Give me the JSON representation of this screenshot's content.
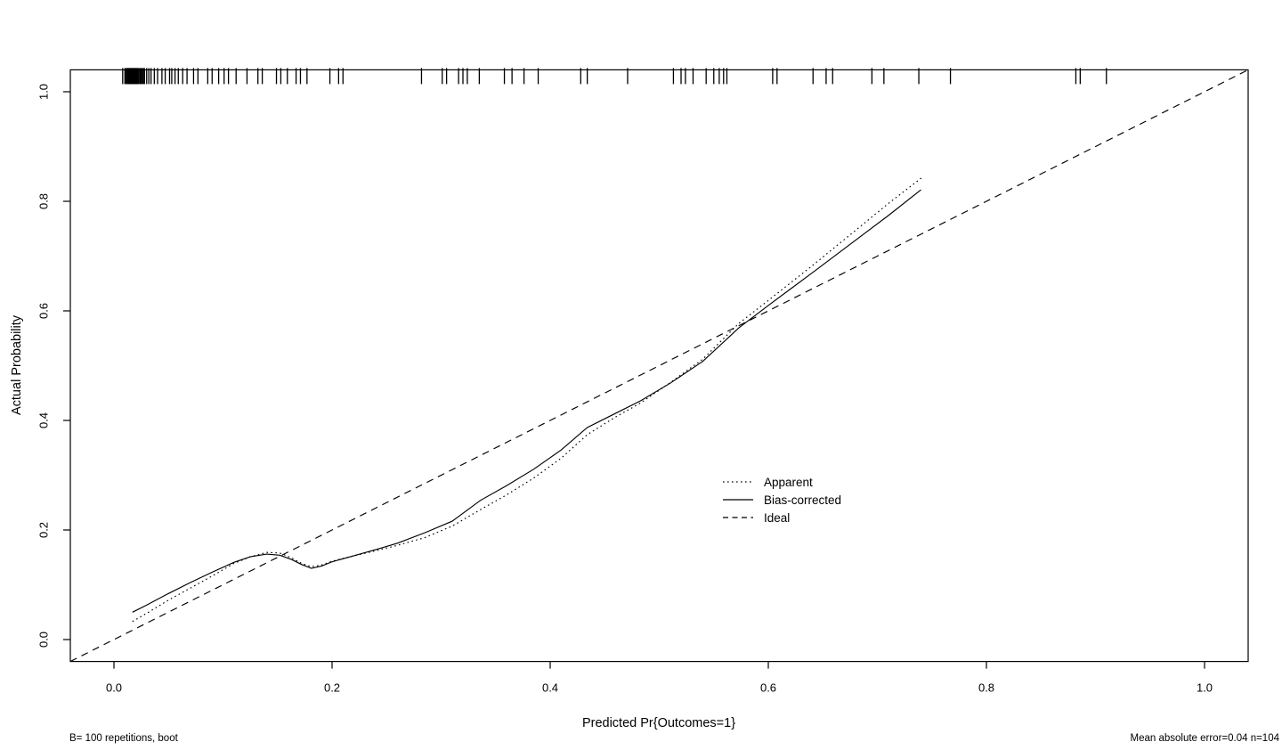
{
  "colors": {
    "foreground": "#000000",
    "background": "#ffffff"
  },
  "chart_data": {
    "type": "line",
    "title": "",
    "xlabel": "Predicted Pr{Outcomes=1}",
    "ylabel": "Actual Probability",
    "xlim": [
      -0.04,
      1.04
    ],
    "ylim": [
      -0.04,
      1.04
    ],
    "grid": false,
    "x_ticks": [
      0.0,
      0.2,
      0.4,
      0.6,
      0.8,
      1.0
    ],
    "y_ticks": [
      0.0,
      0.2,
      0.4,
      0.6,
      0.8,
      1.0
    ],
    "x_tick_labels": [
      "0.0",
      "0.2",
      "0.4",
      "0.6",
      "0.8",
      "1.0"
    ],
    "y_tick_labels": [
      "0.0",
      "0.2",
      "0.4",
      "0.6",
      "0.8",
      "1.0"
    ],
    "legend": {
      "position": "inside-right-middle",
      "entries": [
        "Apparent",
        "Bias-corrected",
        "Ideal"
      ]
    },
    "annotations": {
      "bottom_left": "B= 100 repetitions, boot",
      "bottom_right": "Mean absolute error=0.04 n=104"
    },
    "series": [
      {
        "name": "Apparent",
        "style": "dotted",
        "points": [
          [
            0.017,
            0.033
          ],
          [
            0.03,
            0.048
          ],
          [
            0.05,
            0.072
          ],
          [
            0.07,
            0.094
          ],
          [
            0.09,
            0.116
          ],
          [
            0.11,
            0.139
          ],
          [
            0.125,
            0.151
          ],
          [
            0.14,
            0.159
          ],
          [
            0.152,
            0.158
          ],
          [
            0.163,
            0.149
          ],
          [
            0.172,
            0.139
          ],
          [
            0.181,
            0.133
          ],
          [
            0.19,
            0.136
          ],
          [
            0.2,
            0.143
          ],
          [
            0.22,
            0.153
          ],
          [
            0.24,
            0.162
          ],
          [
            0.26,
            0.172
          ],
          [
            0.285,
            0.186
          ],
          [
            0.31,
            0.207
          ],
          [
            0.336,
            0.237
          ],
          [
            0.36,
            0.264
          ],
          [
            0.385,
            0.295
          ],
          [
            0.41,
            0.331
          ],
          [
            0.434,
            0.374
          ],
          [
            0.458,
            0.404
          ],
          [
            0.483,
            0.432
          ],
          [
            0.51,
            0.469
          ],
          [
            0.54,
            0.512
          ],
          [
            0.573,
            0.577
          ],
          [
            0.6,
            0.619
          ],
          [
            0.64,
            0.682
          ],
          [
            0.68,
            0.747
          ],
          [
            0.71,
            0.796
          ],
          [
            0.742,
            0.845
          ]
        ]
      },
      {
        "name": "Bias-corrected",
        "style": "solid",
        "points": [
          [
            0.017,
            0.05
          ],
          [
            0.03,
            0.063
          ],
          [
            0.05,
            0.084
          ],
          [
            0.07,
            0.104
          ],
          [
            0.09,
            0.123
          ],
          [
            0.11,
            0.141
          ],
          [
            0.125,
            0.151
          ],
          [
            0.14,
            0.156
          ],
          [
            0.152,
            0.154
          ],
          [
            0.163,
            0.146
          ],
          [
            0.172,
            0.137
          ],
          [
            0.181,
            0.13
          ],
          [
            0.19,
            0.134
          ],
          [
            0.2,
            0.142
          ],
          [
            0.22,
            0.153
          ],
          [
            0.24,
            0.164
          ],
          [
            0.26,
            0.176
          ],
          [
            0.285,
            0.195
          ],
          [
            0.31,
            0.216
          ],
          [
            0.336,
            0.254
          ],
          [
            0.36,
            0.281
          ],
          [
            0.385,
            0.311
          ],
          [
            0.41,
            0.346
          ],
          [
            0.434,
            0.387
          ],
          [
            0.458,
            0.411
          ],
          [
            0.483,
            0.436
          ],
          [
            0.51,
            0.468
          ],
          [
            0.54,
            0.508
          ],
          [
            0.573,
            0.569
          ],
          [
            0.6,
            0.61
          ],
          [
            0.64,
            0.669
          ],
          [
            0.68,
            0.729
          ],
          [
            0.71,
            0.774
          ],
          [
            0.74,
            0.821
          ]
        ]
      },
      {
        "name": "Ideal",
        "style": "dashed",
        "points": [
          [
            -0.04,
            -0.04
          ],
          [
            1.04,
            1.04
          ]
        ]
      }
    ],
    "rug_x": [
      0.008,
      0.01,
      0.011,
      0.012,
      0.0125,
      0.013,
      0.0135,
      0.014,
      0.0145,
      0.015,
      0.0155,
      0.016,
      0.0165,
      0.017,
      0.0175,
      0.018,
      0.0185,
      0.019,
      0.0195,
      0.02,
      0.0205,
      0.021,
      0.0215,
      0.022,
      0.023,
      0.024,
      0.025,
      0.026,
      0.027,
      0.028,
      0.03,
      0.032,
      0.034,
      0.037,
      0.04,
      0.044,
      0.047,
      0.051,
      0.053,
      0.056,
      0.059,
      0.063,
      0.067,
      0.073,
      0.077,
      0.086,
      0.09,
      0.096,
      0.101,
      0.105,
      0.112,
      0.122,
      0.132,
      0.136,
      0.149,
      0.153,
      0.159,
      0.167,
      0.171,
      0.177,
      0.198,
      0.206,
      0.21,
      0.282,
      0.301,
      0.305,
      0.316,
      0.32,
      0.324,
      0.335,
      0.358,
      0.365,
      0.376,
      0.389,
      0.428,
      0.434,
      0.471,
      0.513,
      0.52,
      0.524,
      0.531,
      0.543,
      0.55,
      0.555,
      0.559,
      0.562,
      0.604,
      0.608,
      0.641,
      0.653,
      0.659,
      0.695,
      0.706,
      0.738,
      0.767,
      0.882,
      0.886,
      0.91
    ]
  }
}
